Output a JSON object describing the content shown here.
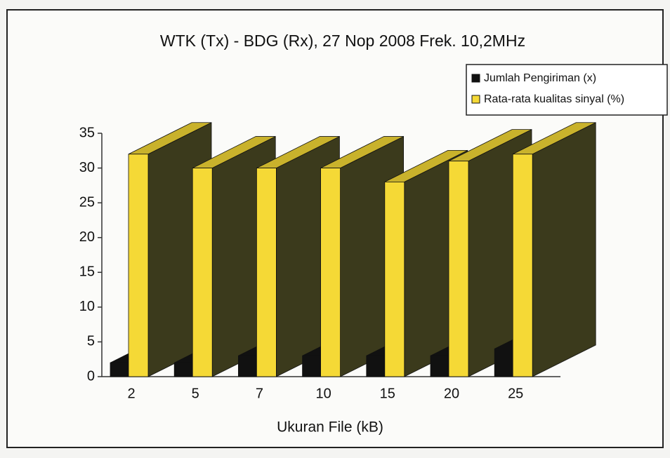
{
  "chart_data": {
    "type": "bar3d",
    "title": "WTK (Tx) - BDG (Rx), 27 Nop 2008 Frek. 10,2MHz",
    "x_label": "Ukuran File (kB)",
    "categories": [
      "2",
      "5",
      "7",
      "10",
      "15",
      "20",
      "25"
    ],
    "series": [
      {
        "name": "Jumlah Pengiriman (x)",
        "color": "#111111",
        "values": [
          2,
          2,
          3,
          3,
          3,
          3,
          4
        ]
      },
      {
        "name": "Rata-rata kualitas sinyal (%)",
        "color": "#f5d936",
        "values": [
          32,
          30,
          30,
          30,
          28,
          31,
          32
        ]
      }
    ],
    "ylim": [
      0,
      35
    ],
    "yticks": [
      0,
      5,
      10,
      15,
      20,
      25,
      30,
      35
    ],
    "legend": "top-right"
  }
}
